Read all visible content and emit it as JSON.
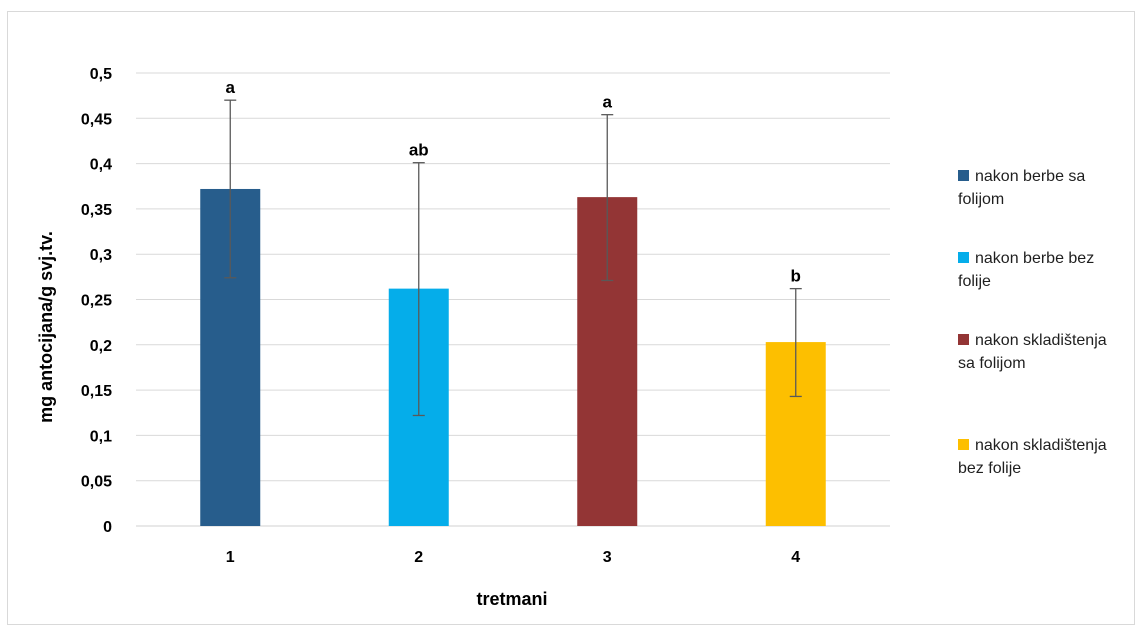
{
  "chart_data": {
    "type": "bar",
    "categories": [
      "1",
      "2",
      "3",
      "4"
    ],
    "values": [
      0.372,
      0.262,
      0.363,
      0.203
    ],
    "error_low": [
      0.274,
      0.122,
      0.271,
      0.143
    ],
    "error_high": [
      0.47,
      0.401,
      0.454,
      0.262
    ],
    "significance": [
      "a",
      "ab",
      "a",
      "b"
    ],
    "colors": [
      "#275d8c",
      "#05adea",
      "#933535",
      "#fdbf00"
    ],
    "ylabel": "mg antocijana/g svj.tv.",
    "xlabel": "tretmani",
    "ylim": [
      0,
      0.5
    ],
    "ytick_values": [
      0,
      0.05,
      0.1,
      0.15,
      0.2,
      0.25,
      0.3,
      0.35,
      0.4,
      0.45,
      0.5
    ],
    "yticks": [
      "0",
      "0,05",
      "0,1",
      "0,15",
      "0,2",
      "0,25",
      "0,3",
      "0,35",
      "0,4",
      "0,45",
      "0,5"
    ],
    "grid": true,
    "legend_position": "right",
    "legend": [
      {
        "label": "nakon berbe sa folijom",
        "color": "#275d8c"
      },
      {
        "label": "nakon berbe bez folije",
        "color": "#05adea"
      },
      {
        "label": "nakon skladištenja sa folijom",
        "color": "#933535"
      },
      {
        "label": "nakon skladištenja bez folije",
        "color": "#fdbf00"
      }
    ]
  }
}
